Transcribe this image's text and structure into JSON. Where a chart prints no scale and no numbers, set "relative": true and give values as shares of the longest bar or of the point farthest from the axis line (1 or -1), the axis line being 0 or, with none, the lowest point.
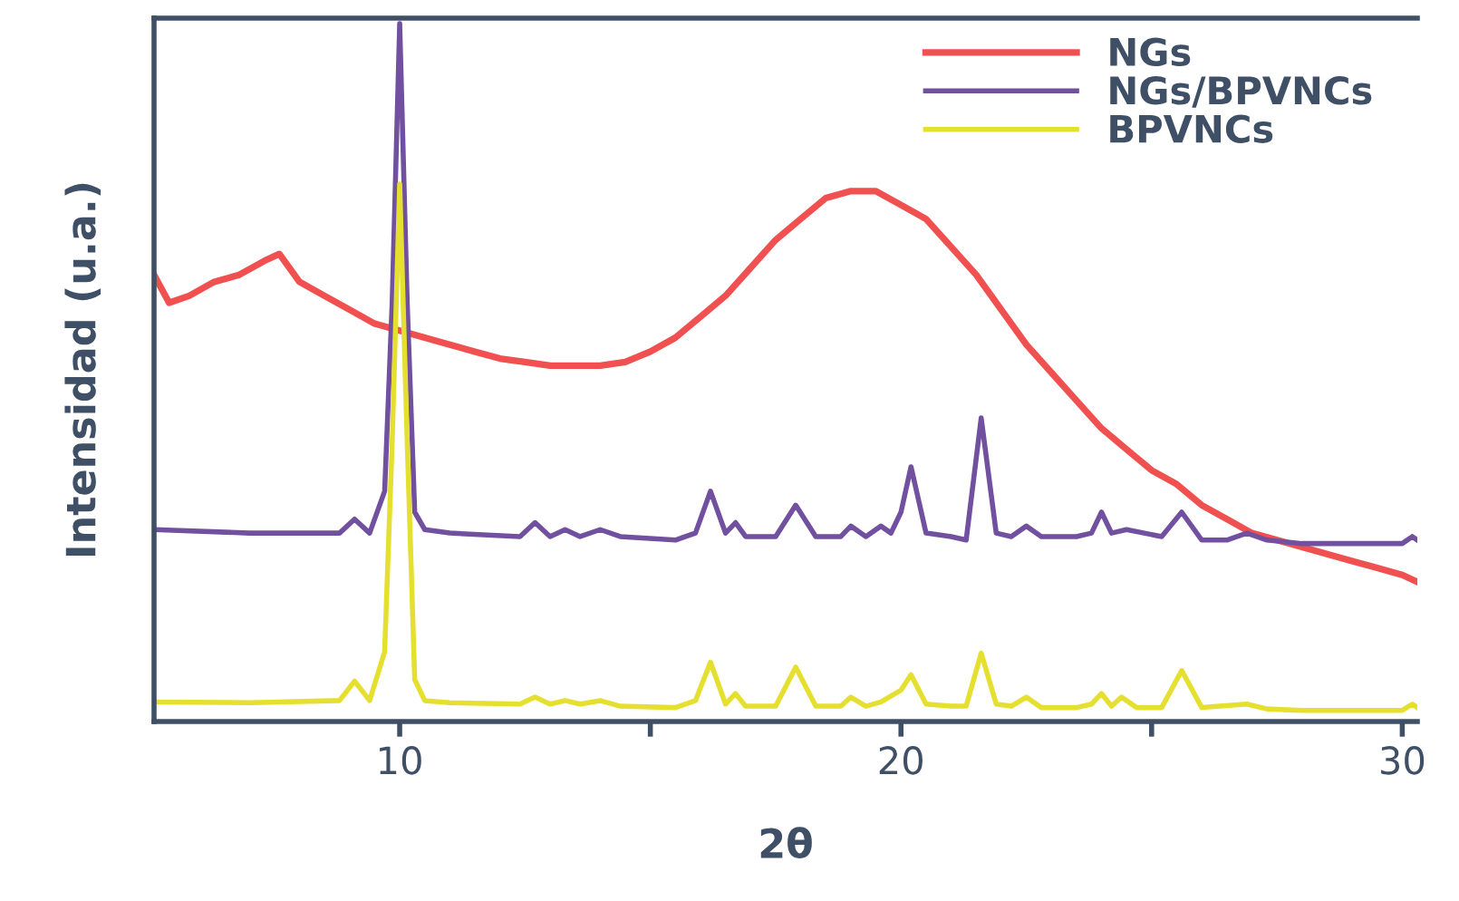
{
  "chart_data": {
    "type": "line",
    "relative": true,
    "xlabel": "2θ",
    "ylabel": "Intensidad (u.a.)",
    "xlim": [
      5.1,
      30.3
    ],
    "xticks": [
      10,
      {
        "value": 15,
        "label": null
      },
      20,
      {
        "value": 25,
        "label": null
      },
      30
    ],
    "legend": "top right",
    "tick_labels": "x",
    "series": [
      {
        "name": "NGs",
        "color": "#f05050",
        "x": [
          5.1,
          5.4,
          5.8,
          6.3,
          6.8,
          7.3,
          7.6,
          8.0,
          8.5,
          9.0,
          9.5,
          10.0,
          10.5,
          11.0,
          11.5,
          12.0,
          12.5,
          13.0,
          13.5,
          14.0,
          14.5,
          15.0,
          15.5,
          16.0,
          16.5,
          17.0,
          17.5,
          18.0,
          18.5,
          19.0,
          19.5,
          20.0,
          20.5,
          21.0,
          21.5,
          22.0,
          22.5,
          23.0,
          23.5,
          24.0,
          24.5,
          25.0,
          25.5,
          26.0,
          26.5,
          27.0,
          27.5,
          28.0,
          28.5,
          29.0,
          29.5,
          30.0,
          30.3
        ],
        "values": [
          0.64,
          0.6,
          0.61,
          0.63,
          0.64,
          0.66,
          0.67,
          0.63,
          0.61,
          0.59,
          0.57,
          0.56,
          0.55,
          0.54,
          0.53,
          0.52,
          0.515,
          0.51,
          0.51,
          0.51,
          0.515,
          0.53,
          0.55,
          0.58,
          0.61,
          0.65,
          0.69,
          0.72,
          0.75,
          0.76,
          0.76,
          0.74,
          0.72,
          0.68,
          0.64,
          0.59,
          0.54,
          0.5,
          0.46,
          0.42,
          0.39,
          0.36,
          0.34,
          0.31,
          0.29,
          0.27,
          0.26,
          0.25,
          0.24,
          0.23,
          0.22,
          0.21,
          0.2
        ]
      },
      {
        "name": "NGs/BPVNCs",
        "color": "#7150a0",
        "x": [
          5.1,
          7.0,
          8.8,
          9.1,
          9.4,
          9.7,
          9.85,
          10.0,
          10.15,
          10.3,
          10.5,
          11.0,
          12.4,
          12.7,
          13.0,
          13.3,
          13.6,
          14.0,
          14.4,
          15.5,
          15.9,
          16.2,
          16.5,
          16.7,
          16.9,
          17.5,
          17.9,
          18.3,
          18.8,
          19.0,
          19.3,
          19.6,
          19.8,
          20.0,
          20.2,
          20.5,
          21.0,
          21.3,
          21.6,
          21.9,
          22.2,
          22.5,
          22.8,
          23.5,
          23.8,
          24.0,
          24.2,
          24.5,
          25.2,
          25.6,
          26.0,
          26.5,
          26.9,
          27.3,
          28.0,
          29.0,
          30.0,
          30.2,
          30.3
        ],
        "values": [
          0.275,
          0.27,
          0.27,
          0.29,
          0.27,
          0.33,
          0.6,
          1.0,
          0.6,
          0.3,
          0.275,
          0.27,
          0.265,
          0.285,
          0.265,
          0.275,
          0.265,
          0.275,
          0.265,
          0.26,
          0.27,
          0.33,
          0.27,
          0.285,
          0.265,
          0.265,
          0.31,
          0.265,
          0.265,
          0.28,
          0.265,
          0.28,
          0.27,
          0.3,
          0.365,
          0.27,
          0.265,
          0.26,
          0.435,
          0.27,
          0.265,
          0.28,
          0.265,
          0.265,
          0.27,
          0.3,
          0.27,
          0.275,
          0.265,
          0.3,
          0.26,
          0.26,
          0.27,
          0.26,
          0.255,
          0.255,
          0.255,
          0.265,
          0.26
        ]
      },
      {
        "name": "BPVNCs",
        "color": "#e5e030",
        "x": [
          5.1,
          7.0,
          8.8,
          9.1,
          9.4,
          9.7,
          9.85,
          10.0,
          10.15,
          10.3,
          10.5,
          11.0,
          12.4,
          12.7,
          13.0,
          13.3,
          13.6,
          14.0,
          14.4,
          15.5,
          15.9,
          16.2,
          16.5,
          16.7,
          16.9,
          17.5,
          17.9,
          18.3,
          18.8,
          19.0,
          19.3,
          19.6,
          20.0,
          20.2,
          20.5,
          21.0,
          21.3,
          21.6,
          21.9,
          22.2,
          22.5,
          22.8,
          23.5,
          23.8,
          24.0,
          24.2,
          24.4,
          24.7,
          25.2,
          25.6,
          26.0,
          26.9,
          27.3,
          28.0,
          29.0,
          30.0,
          30.2,
          30.3
        ],
        "values": [
          0.028,
          0.027,
          0.03,
          0.058,
          0.03,
          0.1,
          0.4,
          0.77,
          0.4,
          0.06,
          0.03,
          0.027,
          0.025,
          0.035,
          0.025,
          0.03,
          0.025,
          0.03,
          0.022,
          0.02,
          0.03,
          0.085,
          0.025,
          0.04,
          0.022,
          0.022,
          0.078,
          0.022,
          0.022,
          0.035,
          0.022,
          0.028,
          0.045,
          0.067,
          0.025,
          0.022,
          0.022,
          0.098,
          0.025,
          0.022,
          0.035,
          0.02,
          0.02,
          0.025,
          0.04,
          0.022,
          0.035,
          0.02,
          0.02,
          0.073,
          0.02,
          0.025,
          0.018,
          0.016,
          0.016,
          0.016,
          0.025,
          0.02
        ]
      }
    ]
  }
}
